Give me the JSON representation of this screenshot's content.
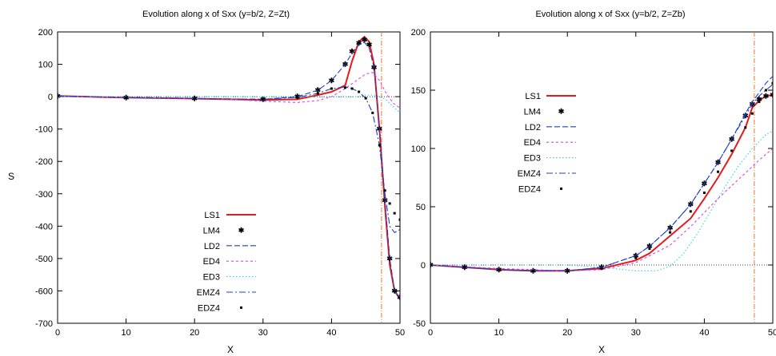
{
  "colors": {
    "LS1": "#e41a1c",
    "LM4": "#22c522",
    "LD2": "#1f3fbf",
    "ED4": "#e040e0",
    "ED3": "#30d0e0",
    "EMZ4": "#1f3fbf",
    "EDZ4": "#000000",
    "marker_line": "#e87a2a",
    "zero_line": "#000000"
  },
  "chart_data": [
    {
      "type": "line",
      "title": "Evolution along x of Sxx (y=b/2, Z=Zt)",
      "xlabel": "X",
      "ylabel": "S",
      "xlim": [
        0,
        50
      ],
      "ylim": [
        -700,
        200
      ],
      "xticks": [
        "0",
        "10",
        "20",
        "30",
        "40",
        "50"
      ],
      "yticks": [
        "-700",
        "-600",
        "-500",
        "-400",
        "-300",
        "-200",
        "-100",
        "0",
        "100",
        "200"
      ],
      "zero_line": true,
      "vertical_marker_x": 47.3,
      "legend_position": "bottom-left",
      "series": [
        {
          "name": "LS1",
          "style": "solid",
          "x": [
            0,
            10,
            20,
            30,
            35,
            38,
            40,
            42,
            43,
            44,
            44.8,
            45.5,
            46.2,
            47,
            47.8,
            48.5,
            49.2,
            50
          ],
          "y": [
            2,
            -3,
            -6,
            -10,
            -8,
            5,
            15,
            35,
            110,
            170,
            185,
            170,
            100,
            -100,
            -340,
            -520,
            -600,
            -625
          ]
        },
        {
          "name": "LM4",
          "style": "points",
          "x": [
            0,
            10,
            20,
            30,
            35,
            38,
            40,
            42,
            43,
            44,
            44.8,
            45.5,
            46.2,
            47,
            47.8,
            48.5,
            49.2,
            50
          ],
          "y": [
            2,
            -3,
            -6,
            -8,
            0,
            20,
            50,
            100,
            140,
            165,
            175,
            160,
            90,
            -100,
            -320,
            -500,
            -600,
            -620
          ]
        },
        {
          "name": "LD2",
          "style": "dashed",
          "x": [
            0,
            10,
            20,
            30,
            35,
            38,
            40,
            42,
            43,
            44,
            44.8,
            45.5,
            46.2,
            47,
            47.8,
            48.5,
            49.2,
            50
          ],
          "y": [
            2,
            -3,
            -6,
            -8,
            0,
            20,
            50,
            100,
            135,
            160,
            168,
            150,
            90,
            -100,
            -320,
            -500,
            -600,
            -620
          ]
        },
        {
          "name": "ED4",
          "style": "short-dash",
          "x": [
            0,
            10,
            20,
            25,
            30,
            35,
            38,
            40,
            42,
            44,
            45,
            46,
            47,
            48,
            49,
            50
          ],
          "y": [
            0,
            -2,
            -5,
            -8,
            -14,
            -18,
            -12,
            0,
            25,
            55,
            70,
            75,
            50,
            10,
            -20,
            -35
          ]
        },
        {
          "name": "ED3",
          "style": "dotted",
          "x": [
            0,
            10,
            20,
            30,
            40,
            44,
            45,
            46,
            47,
            48,
            49,
            50
          ],
          "y": [
            0,
            0,
            0,
            0,
            -1,
            0,
            5,
            5,
            0,
            -10,
            -30,
            -50
          ]
        },
        {
          "name": "EMZ4",
          "style": "dash-dot",
          "x": [
            0,
            10,
            20,
            30,
            35,
            38,
            40,
            42,
            43,
            44,
            45,
            46,
            47,
            47.8,
            48.5,
            49.2,
            50
          ],
          "y": [
            2,
            -3,
            -6,
            -8,
            -2,
            10,
            25,
            30,
            25,
            15,
            -5,
            -50,
            -150,
            -300,
            -400,
            -420,
            -410
          ]
        },
        {
          "name": "EDZ4",
          "style": "points",
          "x": [
            0,
            10,
            20,
            30,
            35,
            38,
            40,
            42,
            43,
            44,
            45,
            46,
            47,
            47.8,
            48.5,
            49.2,
            50
          ],
          "y": [
            2,
            -3,
            -6,
            -8,
            -2,
            10,
            25,
            28,
            25,
            15,
            -5,
            -50,
            -150,
            -290,
            -330,
            -360,
            -380
          ]
        }
      ]
    },
    {
      "type": "line",
      "title": "Evolution along x of Sxx (y=b/2, Z=Zb)",
      "xlabel": "X",
      "ylabel": "",
      "xlim": [
        0,
        50
      ],
      "ylim": [
        -50,
        200
      ],
      "xticks": [
        "0",
        "10",
        "20",
        "30",
        "40",
        "50"
      ],
      "yticks": [
        "-50",
        "0",
        "50",
        "100",
        "150",
        "200"
      ],
      "zero_line": true,
      "vertical_marker_x": 47.3,
      "legend_position": "top-left",
      "series": [
        {
          "name": "LS1",
          "style": "solid",
          "x": [
            0,
            5,
            10,
            15,
            20,
            25,
            30,
            32,
            35,
            38,
            40,
            42,
            44,
            46,
            47,
            48,
            49,
            50
          ],
          "y": [
            0,
            -2,
            -4,
            -5,
            -5,
            -3,
            4,
            10,
            25,
            40,
            57,
            75,
            95,
            118,
            135,
            141,
            145,
            146
          ]
        },
        {
          "name": "LM4",
          "style": "points",
          "x": [
            0,
            5,
            10,
            15,
            20,
            25,
            30,
            32,
            35,
            38,
            40,
            42,
            44,
            46,
            47,
            48,
            49,
            50
          ],
          "y": [
            0,
            -2,
            -4,
            -5,
            -5,
            -2,
            8,
            16,
            32,
            52,
            70,
            88,
            108,
            128,
            138,
            142,
            145,
            146
          ]
        },
        {
          "name": "LD2",
          "style": "dashed",
          "x": [
            0,
            5,
            10,
            15,
            20,
            25,
            30,
            32,
            35,
            38,
            40,
            42,
            44,
            46,
            47,
            48,
            49,
            50
          ],
          "y": [
            0,
            -2,
            -4,
            -5,
            -5,
            -2,
            8,
            16,
            32,
            52,
            70,
            88,
            108,
            130,
            140,
            148,
            156,
            162
          ]
        },
        {
          "name": "ED4",
          "style": "short-dash",
          "x": [
            0,
            10,
            20,
            25,
            30,
            35,
            38,
            40,
            42,
            44,
            46,
            48,
            50
          ],
          "y": [
            0,
            -3,
            -5,
            -4,
            2,
            17,
            33,
            45,
            57,
            68,
            79,
            90,
            100
          ]
        },
        {
          "name": "ED3",
          "style": "dotted",
          "x": [
            0,
            10,
            20,
            25,
            30,
            33,
            35,
            37,
            39,
            41,
            43,
            45,
            47,
            49,
            50
          ],
          "y": [
            0,
            0,
            0,
            -2,
            -5,
            -5,
            -1,
            10,
            27,
            47,
            67,
            85,
            100,
            112,
            115
          ]
        },
        {
          "name": "EMZ4",
          "style": "dash-dot",
          "x": [
            0,
            5,
            10,
            15,
            20,
            25,
            30,
            32,
            35,
            38,
            40,
            42,
            44,
            46,
            47,
            48,
            49,
            50
          ],
          "y": [
            0,
            -2,
            -4,
            -5,
            -5,
            -2,
            8,
            16,
            32,
            52,
            70,
            88,
            108,
            128,
            138,
            145,
            150,
            155
          ]
        },
        {
          "name": "EDZ4",
          "style": "points",
          "x": [
            0,
            5,
            10,
            15,
            20,
            25,
            30,
            32,
            35,
            38,
            40,
            42,
            44,
            46,
            47,
            48,
            49,
            50
          ],
          "y": [
            0,
            -2,
            -4,
            -5,
            -5,
            -3,
            6,
            14,
            28,
            46,
            62,
            80,
            98,
            118,
            130,
            140,
            150,
            156
          ]
        }
      ]
    }
  ]
}
